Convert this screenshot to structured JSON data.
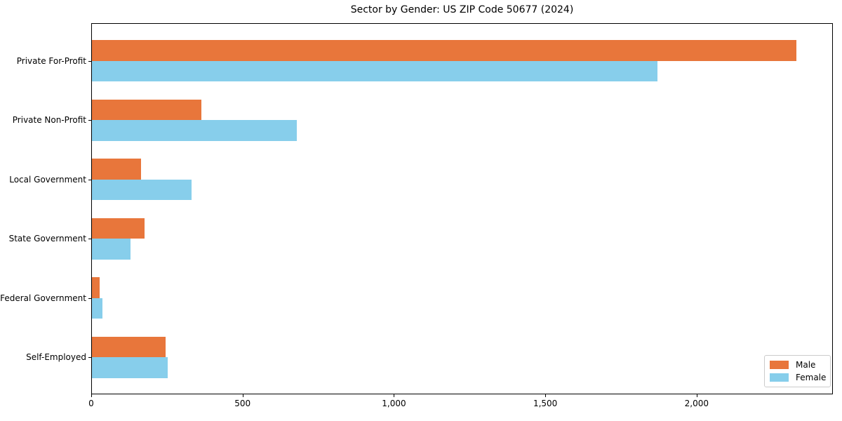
{
  "figure": {
    "title": "Sector by Gender: US ZIP Code 50677 (2024)"
  },
  "chart_data": {
    "type": "bar",
    "orientation": "horizontal",
    "title": "Sector by Gender: US ZIP Code 50677 (2024)",
    "categories": [
      "Private For-Profit",
      "Private Non-Profit",
      "Local Government",
      "State Government",
      "Federal Government",
      "Self-Employed"
    ],
    "series": [
      {
        "name": "Male",
        "color": "#E8763B",
        "values": [
          2330,
          365,
          165,
          175,
          28,
          245
        ]
      },
      {
        "name": "Female",
        "color": "#87CEEB",
        "values": [
          1870,
          678,
          331,
          130,
          36,
          253
        ]
      }
    ],
    "xlabel": "",
    "ylabel": "",
    "xlim": [
      0,
      2450
    ],
    "x_ticks": [
      {
        "value": 0,
        "label": "0"
      },
      {
        "value": 500,
        "label": "500"
      },
      {
        "value": 1000,
        "label": "1,000"
      },
      {
        "value": 1500,
        "label": "1,500"
      },
      {
        "value": 2000,
        "label": "2,000"
      }
    ],
    "grid": false,
    "legend": {
      "position": "lower-right",
      "entries": [
        "Male",
        "Female"
      ]
    }
  }
}
